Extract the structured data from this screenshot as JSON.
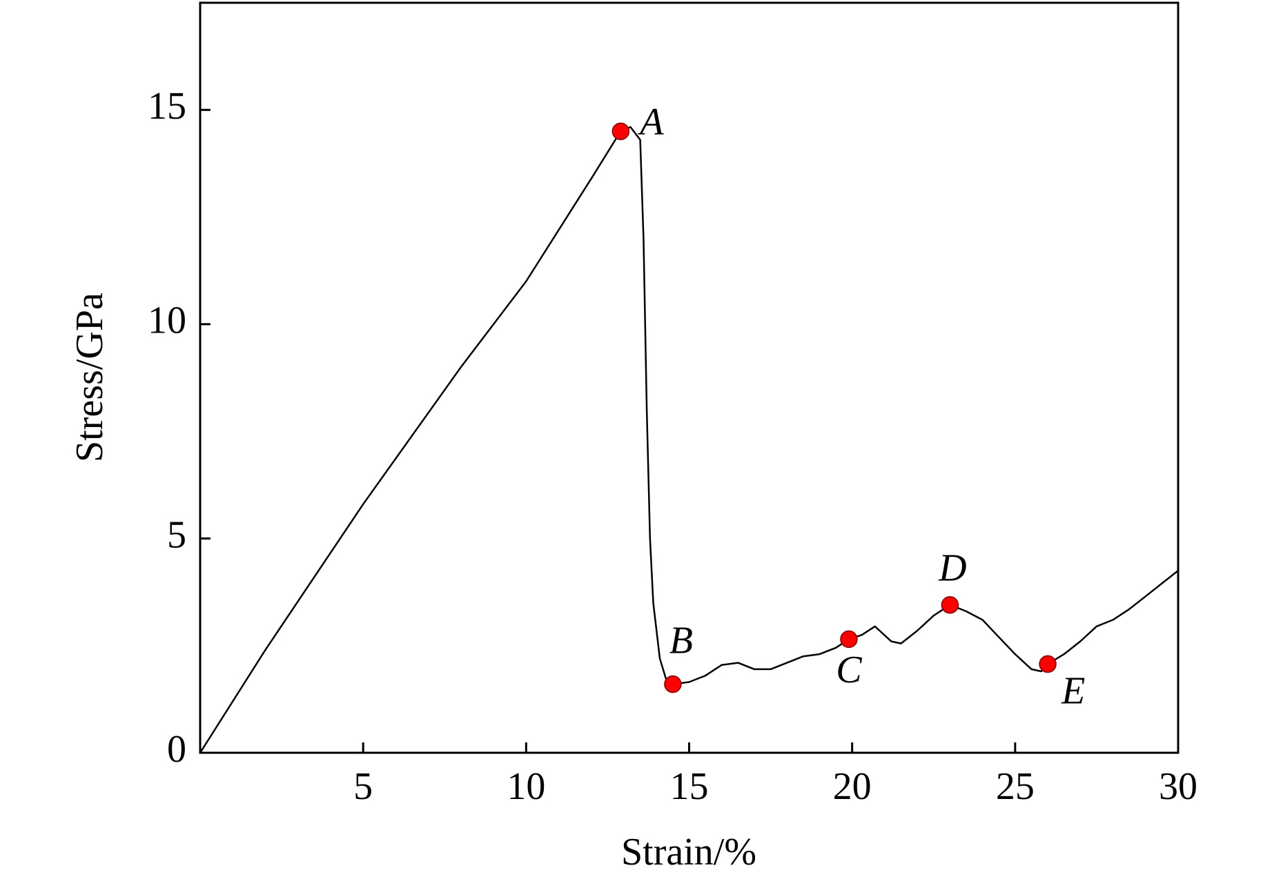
{
  "chart_data": {
    "type": "line",
    "xlabel": "Strain/%",
    "ylabel": "Stress/GPa",
    "x": [
      0,
      2,
      5,
      8,
      10,
      12,
      12.9,
      13.2,
      13.5,
      13.6,
      13.7,
      13.8,
      13.9,
      14.1,
      14.3,
      14.5,
      15,
      15.5,
      16,
      16.5,
      17,
      17.5,
      18,
      18.5,
      19,
      19.5,
      19.9,
      20.3,
      20.7,
      21.2,
      21.5,
      22,
      22.5,
      23,
      23.5,
      24,
      24.5,
      25,
      25.5,
      25.8,
      26,
      26.5,
      27,
      27.5,
      28,
      28.5,
      29,
      29.5,
      30
    ],
    "series": [
      {
        "color": "#000000",
        "values": [
          0,
          2.4,
          5.8,
          9.0,
          11.0,
          13.4,
          14.5,
          14.6,
          14.3,
          12,
          8,
          5,
          3.5,
          2.2,
          1.7,
          1.6,
          1.65,
          1.8,
          2.05,
          2.1,
          1.95,
          1.95,
          2.1,
          2.25,
          2.3,
          2.45,
          2.65,
          2.75,
          2.95,
          2.6,
          2.55,
          2.85,
          3.2,
          3.45,
          3.3,
          3.1,
          2.7,
          2.3,
          1.95,
          1.9,
          2.07,
          2.3,
          2.6,
          2.95,
          3.1,
          3.35,
          3.65,
          3.95,
          4.25
        ]
      }
    ],
    "points": {
      "color": "#ff0000",
      "labels": [
        "A",
        "B",
        "C",
        "D",
        "E"
      ],
      "x": [
        12.9,
        14.5,
        19.9,
        23,
        26
      ],
      "y": [
        14.5,
        1.6,
        2.65,
        3.45,
        2.07
      ]
    },
    "xlim": [
      0,
      30
    ],
    "ylim": [
      0,
      17.5
    ],
    "xticks": [
      5,
      10,
      15,
      20,
      25,
      30
    ],
    "yticks": [
      0,
      5,
      10,
      15
    ]
  }
}
